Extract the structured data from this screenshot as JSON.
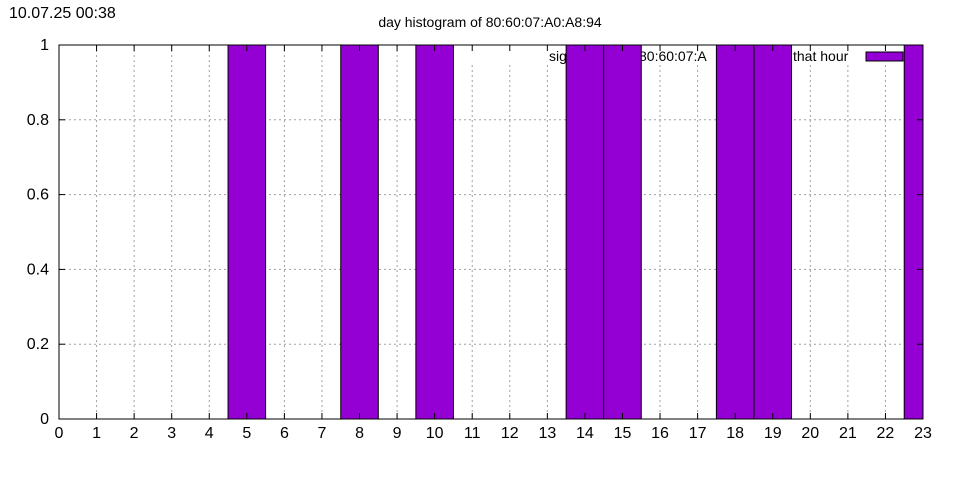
{
  "timestamp": "10.07.25 00:38",
  "chart_data": {
    "type": "bar",
    "title": "day histogram of 80:60:07:A0:A8:94",
    "xlabel": "",
    "ylabel": "",
    "xlim": [
      0,
      23
    ],
    "ylim": [
      0,
      1
    ],
    "x_ticks": [
      "0",
      "1",
      "2",
      "3",
      "4",
      "5",
      "6",
      "7",
      "8",
      "9",
      "10",
      "11",
      "12",
      "13",
      "14",
      "15",
      "16",
      "17",
      "18",
      "19",
      "20",
      "21",
      "22",
      "23"
    ],
    "y_ticks": [
      "0",
      "0.2",
      "0.4",
      "0.6",
      "0.8",
      "1"
    ],
    "grid": true,
    "legend_position": "top-right",
    "series": [
      {
        "name": "sig… 80:60:07:A… that hour",
        "legend_visible_parts": [
          "sig",
          "80:60:07:A",
          "that hour"
        ],
        "color": "#9400d3",
        "x": [
          0,
          1,
          2,
          3,
          4,
          5,
          6,
          7,
          8,
          9,
          10,
          11,
          12,
          13,
          14,
          15,
          16,
          17,
          18,
          19,
          20,
          21,
          22,
          23
        ],
        "values": [
          0,
          0,
          0,
          0,
          0,
          1,
          0,
          0,
          1,
          0,
          1,
          0,
          0,
          0,
          1,
          1,
          0,
          0,
          1,
          1,
          0,
          0,
          0,
          1
        ]
      }
    ]
  }
}
